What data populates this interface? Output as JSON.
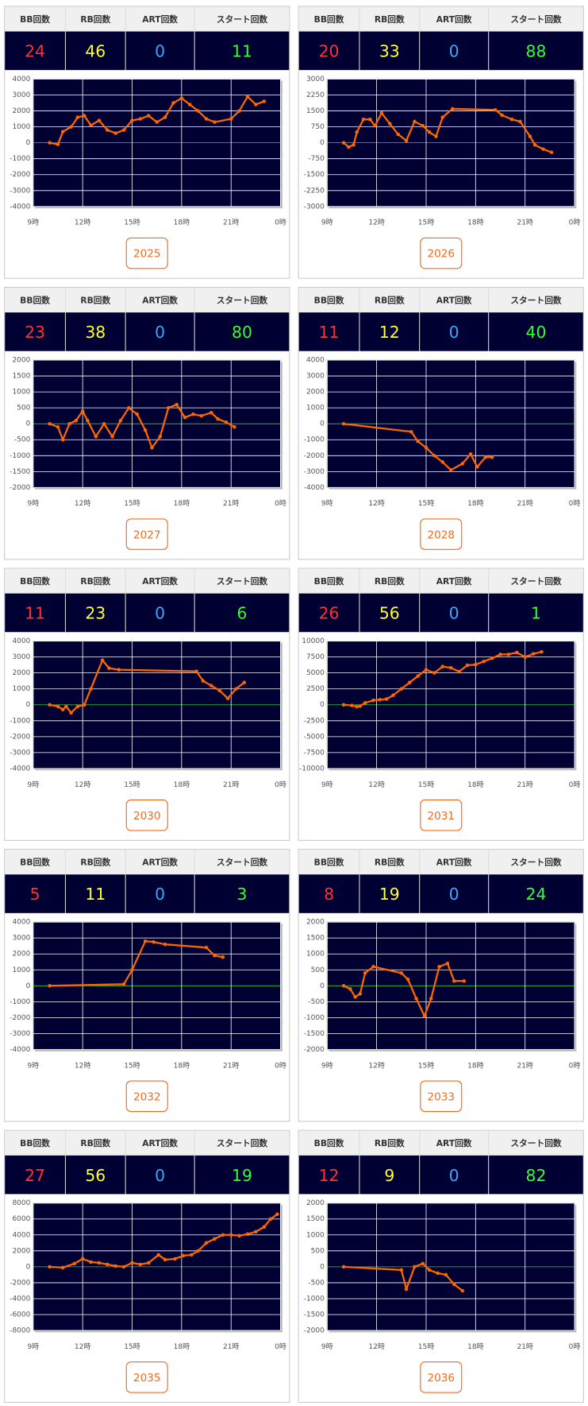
{
  "table_headers": [
    "BB回数",
    "RB回数",
    "ART回数",
    "スタート回数"
  ],
  "chart_data": [
    {
      "type": "line",
      "stats": [
        24,
        46,
        0,
        11
      ],
      "button": "2025",
      "grid": true,
      "color": "#ff6600",
      "xlim": [
        9,
        24
      ],
      "xticks": [
        {
          "value": 9,
          "label": "9時"
        },
        {
          "value": 12,
          "label": "12時"
        },
        {
          "value": 15,
          "label": "15時"
        },
        {
          "value": 18,
          "label": "18時"
        },
        {
          "value": 21,
          "label": "21時"
        },
        {
          "value": 24,
          "label": "0時"
        }
      ],
      "ylim": [
        -4000,
        4000
      ],
      "yticks": [
        -4000,
        -3000,
        -2000,
        -1000,
        0,
        1000,
        2000,
        3000,
        4000
      ],
      "x": [
        10,
        10.5,
        10.8,
        11.3,
        11.7,
        12.1,
        12.5,
        13,
        13.5,
        14,
        14.5,
        15,
        15.5,
        16,
        16.5,
        17,
        17.5,
        18,
        18.5,
        19,
        19.5,
        20,
        21,
        21.5,
        22,
        22.5,
        23
      ],
      "values": [
        0,
        -100,
        700,
        1000,
        1600,
        1700,
        1100,
        1400,
        800,
        600,
        800,
        1400,
        1500,
        1700,
        1300,
        1600,
        2500,
        2800,
        2400,
        2000,
        1500,
        1300,
        1500,
        2000,
        2900,
        2400,
        2600
      ]
    },
    {
      "type": "line",
      "stats": [
        20,
        33,
        0,
        88
      ],
      "button": "2026",
      "grid": true,
      "color": "#ff6600",
      "xlim": [
        9,
        24
      ],
      "xticks": [
        {
          "value": 9,
          "label": "9時"
        },
        {
          "value": 12,
          "label": "12時"
        },
        {
          "value": 15,
          "label": "15時"
        },
        {
          "value": 18,
          "label": "18時"
        },
        {
          "value": 21,
          "label": "21時"
        },
        {
          "value": 24,
          "label": "0時"
        }
      ],
      "ylim": [
        -3000,
        3000
      ],
      "yticks": [
        -3000,
        -2250,
        -1500,
        -750,
        0,
        750,
        1500,
        2250,
        3000
      ],
      "x": [
        10,
        10.3,
        10.6,
        10.8,
        11.2,
        11.6,
        11.9,
        12.3,
        12.8,
        13.3,
        13.8,
        14.3,
        14.8,
        15.2,
        15.6,
        16,
        16.6,
        19.2,
        19.6,
        20.2,
        20.7,
        21.3,
        21.6,
        22.1,
        22.6
      ],
      "values": [
        0,
        -200,
        -100,
        500,
        1100,
        1100,
        800,
        1400,
        900,
        400,
        100,
        1000,
        800,
        500,
        300,
        1200,
        1600,
        1550,
        1300,
        1100,
        1000,
        300,
        -100,
        -300,
        -450
      ]
    },
    {
      "type": "line",
      "stats": [
        23,
        38,
        0,
        80
      ],
      "button": "2027",
      "grid": true,
      "color": "#ff6600",
      "xlim": [
        9,
        24
      ],
      "xticks": [
        {
          "value": 9,
          "label": "9時"
        },
        {
          "value": 12,
          "label": "12時"
        },
        {
          "value": 15,
          "label": "15時"
        },
        {
          "value": 18,
          "label": "18時"
        },
        {
          "value": 21,
          "label": "21時"
        },
        {
          "value": 24,
          "label": "0時"
        }
      ],
      "ylim": [
        -2000,
        2000
      ],
      "yticks": [
        -2000,
        -1500,
        -1000,
        -500,
        0,
        500,
        1000,
        1500,
        2000
      ],
      "x": [
        10,
        10.5,
        10.8,
        11.2,
        11.6,
        12,
        12.3,
        12.8,
        13.3,
        13.8,
        14.3,
        14.8,
        15.3,
        15.8,
        16.2,
        16.7,
        17.2,
        17.7,
        18.2,
        18.7,
        19.2,
        19.8,
        20.2,
        20.7,
        21.2
      ],
      "values": [
        0,
        -100,
        -500,
        0,
        100,
        400,
        100,
        -400,
        0,
        -400,
        100,
        500,
        300,
        -200,
        -750,
        -400,
        500,
        600,
        200,
        300,
        250,
        350,
        150,
        50,
        -100
      ]
    },
    {
      "type": "line",
      "stats": [
        11,
        12,
        0,
        40
      ],
      "button": "2028",
      "grid": true,
      "color": "#ff6600",
      "xlim": [
        9,
        24
      ],
      "xticks": [
        {
          "value": 9,
          "label": "9時"
        },
        {
          "value": 12,
          "label": "12時"
        },
        {
          "value": 15,
          "label": "15時"
        },
        {
          "value": 18,
          "label": "18時"
        },
        {
          "value": 21,
          "label": "21時"
        },
        {
          "value": 24,
          "label": "0時"
        }
      ],
      "ylim": [
        -4000,
        4000
      ],
      "yticks": [
        -4000,
        -3000,
        -2000,
        -1000,
        0,
        1000,
        2000,
        3000,
        4000
      ],
      "x": [
        10,
        14.1,
        14.5,
        15,
        15.5,
        16,
        16.5,
        17.2,
        17.7,
        18.1,
        18.6,
        19
      ],
      "values": [
        0,
        -500,
        -1100,
        -1500,
        -2000,
        -2400,
        -2900,
        -2500,
        -1900,
        -2700,
        -2100,
        -2100
      ]
    },
    {
      "type": "line",
      "stats": [
        11,
        23,
        0,
        6
      ],
      "button": "2030",
      "grid": true,
      "color": "#ff6600",
      "xlim": [
        9,
        24
      ],
      "xticks": [
        {
          "value": 9,
          "label": "9時"
        },
        {
          "value": 12,
          "label": "12時"
        },
        {
          "value": 15,
          "label": "15時"
        },
        {
          "value": 18,
          "label": "18時"
        },
        {
          "value": 21,
          "label": "21時"
        },
        {
          "value": 24,
          "label": "0時"
        }
      ],
      "ylim": [
        -4000,
        4000
      ],
      "yticks": [
        -4000,
        -3000,
        -2000,
        -1000,
        0,
        1000,
        2000,
        3000,
        4000
      ],
      "x": [
        10,
        10.5,
        10.8,
        11,
        11.3,
        11.7,
        12.1,
        12.5,
        13.2,
        13.6,
        14.2,
        18.9,
        19.3,
        19.8,
        20.3,
        20.8,
        21.3,
        21.8
      ],
      "values": [
        0,
        -100,
        -300,
        -100,
        -500,
        -100,
        0,
        1000,
        2800,
        2300,
        2200,
        2100,
        1500,
        1200,
        900,
        400,
        1000,
        1400
      ]
    },
    {
      "type": "line",
      "stats": [
        26,
        56,
        0,
        1
      ],
      "button": "2031",
      "grid": true,
      "color": "#ff6600",
      "xlim": [
        9,
        24
      ],
      "xticks": [
        {
          "value": 9,
          "label": "9時"
        },
        {
          "value": 12,
          "label": "12時"
        },
        {
          "value": 15,
          "label": "15時"
        },
        {
          "value": 18,
          "label": "18時"
        },
        {
          "value": 21,
          "label": "21時"
        },
        {
          "value": 24,
          "label": "0時"
        }
      ],
      "ylim": [
        -10000,
        10000
      ],
      "yticks": [
        -10000,
        -7500,
        -5000,
        -2500,
        0,
        2500,
        5000,
        7500,
        10000
      ],
      "x": [
        10,
        10.5,
        10.8,
        11,
        11.3,
        11.8,
        12.2,
        12.6,
        13,
        13.5,
        14,
        14.5,
        15,
        15.5,
        16,
        16.5,
        17,
        17.5,
        18,
        18.5,
        19,
        19.5,
        20,
        20.5,
        21,
        21.5,
        22
      ],
      "values": [
        0,
        -100,
        -300,
        -200,
        300,
        700,
        800,
        900,
        1500,
        2500,
        3500,
        4500,
        5500,
        5000,
        6000,
        5800,
        5200,
        6200,
        6300,
        6800,
        7300,
        7900,
        7900,
        8200,
        7500,
        8000,
        8300
      ]
    },
    {
      "type": "line",
      "stats": [
        5,
        11,
        0,
        3
      ],
      "button": "2032",
      "grid": true,
      "color": "#ff6600",
      "xlim": [
        9,
        24
      ],
      "xticks": [
        {
          "value": 9,
          "label": "9時"
        },
        {
          "value": 12,
          "label": "12時"
        },
        {
          "value": 15,
          "label": "15時"
        },
        {
          "value": 18,
          "label": "18時"
        },
        {
          "value": 21,
          "label": "21時"
        },
        {
          "value": 24,
          "label": "0時"
        }
      ],
      "ylim": [
        -4000,
        4000
      ],
      "yticks": [
        -4000,
        -3000,
        -2000,
        -1000,
        0,
        1000,
        2000,
        3000,
        4000
      ],
      "x": [
        10,
        14.5,
        15,
        15.8,
        16.3,
        17,
        19.5,
        20,
        20.5
      ],
      "values": [
        0,
        100,
        1000,
        2800,
        2750,
        2600,
        2400,
        1900,
        1800
      ]
    },
    {
      "type": "line",
      "stats": [
        8,
        19,
        0,
        24
      ],
      "button": "2033",
      "grid": true,
      "color": "#ff6600",
      "xlim": [
        9,
        24
      ],
      "xticks": [
        {
          "value": 9,
          "label": "9時"
        },
        {
          "value": 12,
          "label": "12時"
        },
        {
          "value": 15,
          "label": "15時"
        },
        {
          "value": 18,
          "label": "18時"
        },
        {
          "value": 21,
          "label": "21時"
        },
        {
          "value": 24,
          "label": "0時"
        }
      ],
      "ylim": [
        -2000,
        2000
      ],
      "yticks": [
        -2000,
        -1500,
        -1000,
        -500,
        0,
        500,
        1000,
        1500,
        2000
      ],
      "x": [
        10,
        10.4,
        10.7,
        11,
        11.3,
        11.8,
        13.5,
        13.9,
        14.4,
        14.9,
        15.3,
        15.8,
        16.3,
        16.7,
        17.3
      ],
      "values": [
        0,
        -100,
        -350,
        -250,
        400,
        600,
        400,
        200,
        -400,
        -950,
        -400,
        600,
        700,
        150,
        150
      ]
    },
    {
      "type": "line",
      "stats": [
        27,
        56,
        0,
        19
      ],
      "button": "2035",
      "grid": true,
      "color": "#ff6600",
      "xlim": [
        9,
        24
      ],
      "xticks": [
        {
          "value": 9,
          "label": "9時"
        },
        {
          "value": 12,
          "label": "12時"
        },
        {
          "value": 15,
          "label": "15時"
        },
        {
          "value": 18,
          "label": "18時"
        },
        {
          "value": 21,
          "label": "21時"
        },
        {
          "value": 24,
          "label": "0時"
        }
      ],
      "ylim": [
        -8000,
        8000
      ],
      "yticks": [
        -8000,
        -6000,
        -4000,
        -2000,
        0,
        2000,
        4000,
        6000,
        8000
      ],
      "x": [
        10,
        10.8,
        11.5,
        12,
        12.5,
        13,
        13.5,
        14,
        14.5,
        15,
        15.5,
        16,
        16.6,
        17,
        17.6,
        18.1,
        18.6,
        19,
        19.5,
        20,
        20.5,
        21,
        21.5,
        22,
        22.5,
        23,
        23.4,
        23.8
      ],
      "values": [
        0,
        -100,
        400,
        1000,
        600,
        500,
        300,
        100,
        0,
        500,
        300,
        500,
        1500,
        900,
        1000,
        1400,
        1500,
        2000,
        3000,
        3500,
        4000,
        4000,
        3900,
        4100,
        4400,
        5000,
        6000,
        6600
      ]
    },
    {
      "type": "line",
      "stats": [
        12,
        9,
        0,
        82
      ],
      "button": "2036",
      "grid": true,
      "color": "#ff6600",
      "xlim": [
        9,
        24
      ],
      "xticks": [
        {
          "value": 9,
          "label": "9時"
        },
        {
          "value": 12,
          "label": "12時"
        },
        {
          "value": 15,
          "label": "15時"
        },
        {
          "value": 18,
          "label": "18時"
        },
        {
          "value": 21,
          "label": "21時"
        },
        {
          "value": 24,
          "label": "0時"
        }
      ],
      "ylim": [
        -2000,
        2000
      ],
      "yticks": [
        -2000,
        -1500,
        -1000,
        -500,
        0,
        500,
        1000,
        1500,
        2000
      ],
      "x": [
        10,
        13.5,
        13.8,
        14.3,
        14.8,
        15.2,
        15.7,
        16.2,
        16.7,
        17.2
      ],
      "values": [
        0,
        -100,
        -700,
        0,
        100,
        -100,
        -200,
        -250,
        -550,
        -750
      ]
    }
  ]
}
